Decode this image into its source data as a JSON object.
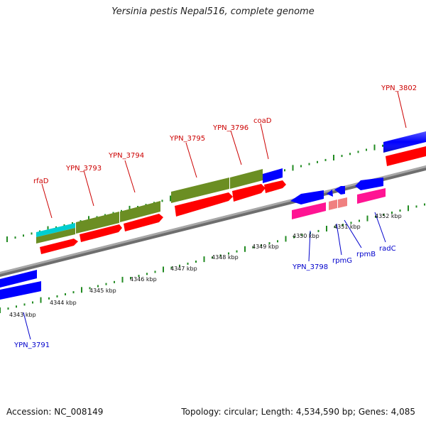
{
  "title": "Yersinia pestis Nepal516, complete genome",
  "footer": {
    "accession": "Accession: NC_008149",
    "summary": "Topology: circular; Length: 4,534,590 bp; Genes: 4,085"
  },
  "colors": {
    "cds": "#ff0000",
    "gene_olive": "#6b8e23",
    "gene_blue": "#0000ff",
    "gene_magenta": "#ff1493",
    "gene_pink": "#f08080",
    "gene_cyan": "#00ced1",
    "tick": "#228b22",
    "label_forward": "#cc0000",
    "label_reverse": "#0000cc",
    "backbone": "#7a7a7a"
  },
  "kbp_labels": [
    {
      "text": "4343 kbp"
    },
    {
      "text": "4344 kbp"
    },
    {
      "text": "4345 kbp"
    },
    {
      "text": "4346 kbp"
    },
    {
      "text": "4347 kbp"
    },
    {
      "text": "4348 kbp"
    },
    {
      "text": "4349 kbp"
    },
    {
      "text": "4350 kbp"
    },
    {
      "text": "4351 kbp"
    },
    {
      "text": "4352 kbp"
    }
  ],
  "forward_genes": [
    {
      "name": "rfaD"
    },
    {
      "name": "YPN_3793"
    },
    {
      "name": "YPN_3794"
    },
    {
      "name": "YPN_3795"
    },
    {
      "name": "YPN_3796"
    },
    {
      "name": "coaD"
    },
    {
      "name": "YPN_3802"
    }
  ],
  "reverse_genes": [
    {
      "name": "YPN_3791"
    },
    {
      "name": "YPN_3798"
    },
    {
      "name": "rpmG"
    },
    {
      "name": "rpmB"
    },
    {
      "name": "radC"
    }
  ]
}
